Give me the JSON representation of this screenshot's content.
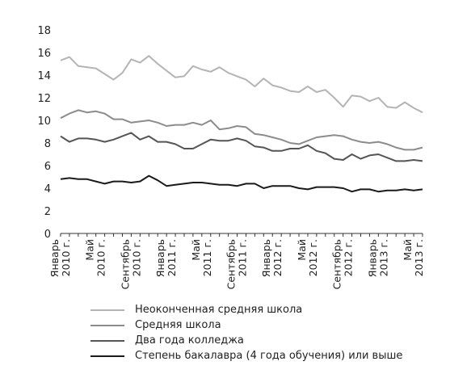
{
  "chart_data": {
    "type": "line",
    "ylim": [
      0,
      18
    ],
    "yticks": [
      "0",
      "2",
      "4",
      "6",
      "8",
      "10",
      "12",
      "14",
      "16",
      "18"
    ],
    "grid": false,
    "legend_position": "bottom",
    "x_tick_labels": [
      {
        "line1": "Январь",
        "line2": "2010 г."
      },
      {
        "line1": "Май",
        "line2": "2010 г."
      },
      {
        "line1": "Сентябрь",
        "line2": "2010 г."
      },
      {
        "line1": "Январь",
        "line2": "2011 г."
      },
      {
        "line1": "Май",
        "line2": "2011 г."
      },
      {
        "line1": "Сентябрь",
        "line2": "2011 г."
      },
      {
        "line1": "Январь",
        "line2": "2012 г."
      },
      {
        "line1": "Май",
        "line2": "2012 г."
      },
      {
        "line1": "Сентябрь",
        "line2": "2012 г."
      },
      {
        "line1": "Январь",
        "line2": "2013 г."
      },
      {
        "line1": "Май",
        "line2": "2013 г."
      }
    ],
    "series": [
      {
        "name": "Неоконченная средняя школа",
        "color": "#b4b4b4",
        "values": [
          15.3,
          15.6,
          14.8,
          14.7,
          14.6,
          14.1,
          13.6,
          14.2,
          15.4,
          15.1,
          15.7,
          15.0,
          14.4,
          13.8,
          13.9,
          14.8,
          14.5,
          14.3,
          14.7,
          14.2,
          13.9,
          13.6,
          13.0,
          13.7,
          13.1,
          12.9,
          12.6,
          12.5,
          13.0,
          12.5,
          12.7,
          12.0,
          11.2,
          12.2,
          12.1,
          11.7,
          12.0,
          11.2,
          11.1,
          11.6,
          11.1,
          10.7
        ]
      },
      {
        "name": "Средняя школа",
        "color": "#8c8c8c",
        "values": [
          10.2,
          10.6,
          10.9,
          10.7,
          10.8,
          10.6,
          10.1,
          10.1,
          9.8,
          9.9,
          10.0,
          9.8,
          9.5,
          9.6,
          9.6,
          9.8,
          9.6,
          10.0,
          9.2,
          9.3,
          9.5,
          9.4,
          8.8,
          8.7,
          8.5,
          8.3,
          8.0,
          7.9,
          8.2,
          8.5,
          8.6,
          8.7,
          8.6,
          8.3,
          8.1,
          8.0,
          8.1,
          7.9,
          7.6,
          7.4,
          7.4,
          7.6
        ]
      },
      {
        "name": "Два года колледжа",
        "color": "#555555",
        "values": [
          8.6,
          8.1,
          8.4,
          8.4,
          8.3,
          8.1,
          8.3,
          8.6,
          8.9,
          8.3,
          8.6,
          8.1,
          8.1,
          7.9,
          7.5,
          7.5,
          7.9,
          8.3,
          8.2,
          8.2,
          8.4,
          8.2,
          7.7,
          7.6,
          7.3,
          7.3,
          7.5,
          7.5,
          7.8,
          7.3,
          7.1,
          6.6,
          6.5,
          7.0,
          6.6,
          6.9,
          7.0,
          6.7,
          6.4,
          6.4,
          6.5,
          6.4
        ]
      },
      {
        "name": "Степень бакалавра (4 года обучения) или выше",
        "color": "#1a1a1a",
        "values": [
          4.8,
          4.9,
          4.8,
          4.8,
          4.6,
          4.4,
          4.6,
          4.6,
          4.5,
          4.6,
          5.1,
          4.7,
          4.2,
          4.3,
          4.4,
          4.5,
          4.5,
          4.4,
          4.3,
          4.3,
          4.2,
          4.4,
          4.4,
          4.0,
          4.2,
          4.2,
          4.2,
          4.0,
          3.9,
          4.1,
          4.1,
          4.1,
          4.0,
          3.7,
          3.9,
          3.9,
          3.7,
          3.8,
          3.8,
          3.9,
          3.8,
          3.9
        ]
      }
    ]
  }
}
